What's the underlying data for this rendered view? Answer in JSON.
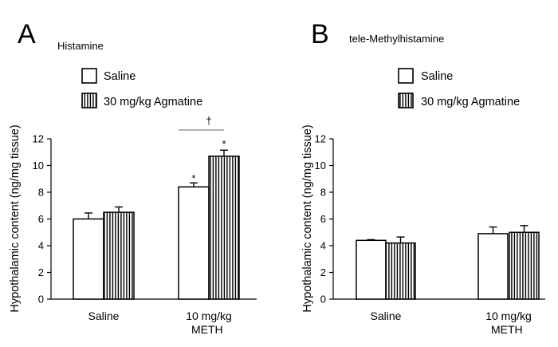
{
  "colors": {
    "axis": "#000000",
    "bar_fill": "#ffffff",
    "hatch": "#000000",
    "significance_line": "#888888"
  },
  "legend": {
    "saline_label": "Saline",
    "agmatine_label": "30 mg/kg  Agmatine"
  },
  "chart_data": [
    {
      "type": "bar",
      "panel_letter": "A",
      "title": "Histamine",
      "ylabel": "Hypothalamic content (ng/mg tissue)",
      "ylim": [
        0,
        12
      ],
      "yticks": [
        "0",
        "2",
        "4",
        "6",
        "8",
        "10",
        "12"
      ],
      "categories": [
        [
          "Saline"
        ],
        [
          "10 mg/kg",
          "METH"
        ]
      ],
      "series": [
        {
          "name": "Saline",
          "pattern": "open",
          "values": [
            6.0,
            8.4
          ],
          "errors": [
            0.45,
            0.3
          ]
        },
        {
          "name": "30 mg/kg  Agmatine",
          "pattern": "vertical-stripes",
          "values": [
            6.5,
            10.7
          ],
          "errors": [
            0.4,
            0.45
          ]
        }
      ],
      "annotations": {
        "asterisk": "*",
        "dagger": "†"
      }
    },
    {
      "type": "bar",
      "panel_letter": "B",
      "title": "tele-Methylhistamine",
      "ylabel": "Hypothalamic content (ng/mg tissue)",
      "ylim": [
        0,
        12
      ],
      "yticks": [
        "0",
        "2",
        "4",
        "6",
        "8",
        "10",
        "12"
      ],
      "categories": [
        [
          "Saline"
        ],
        [
          "10 mg/kg",
          "METH"
        ]
      ],
      "series": [
        {
          "name": "Saline",
          "pattern": "open",
          "values": [
            4.4,
            4.9
          ],
          "errors": [
            0.05,
            0.5
          ]
        },
        {
          "name": "30 mg/kg  Agmatine",
          "pattern": "vertical-stripes",
          "values": [
            4.2,
            5.0
          ],
          "errors": [
            0.45,
            0.5
          ]
        }
      ]
    }
  ]
}
